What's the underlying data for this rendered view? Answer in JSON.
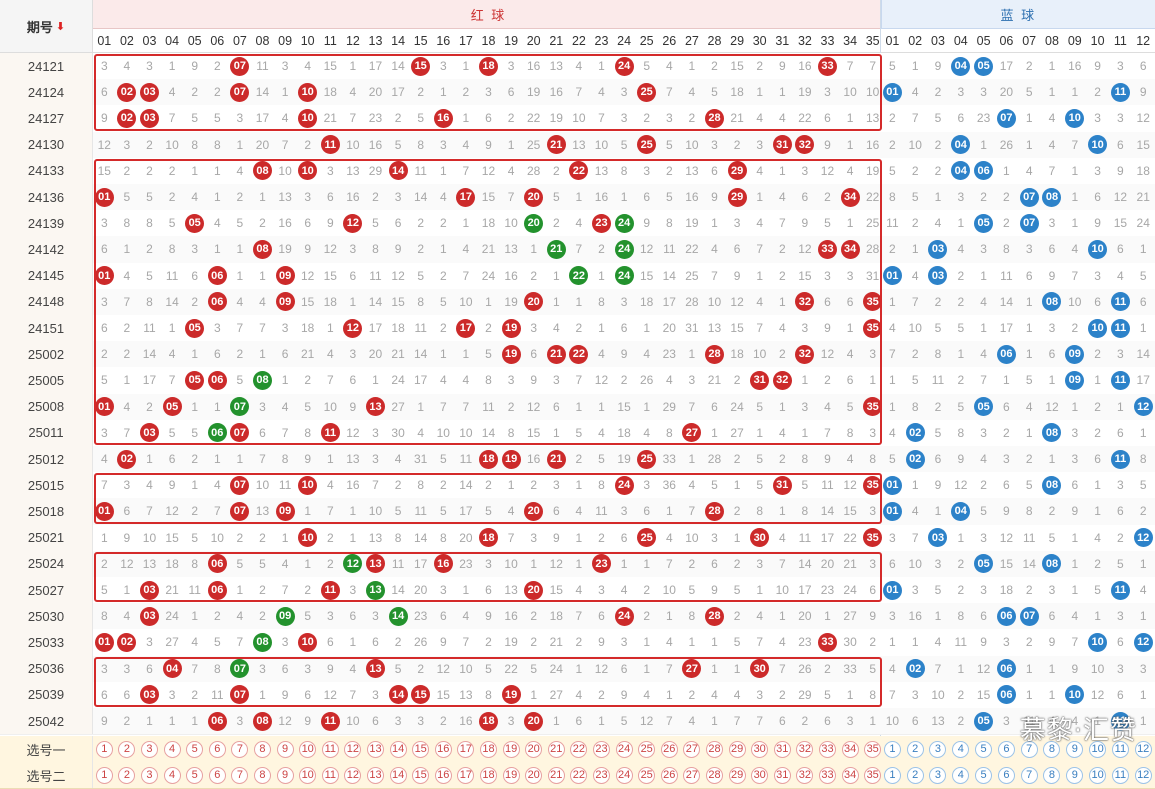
{
  "header": {
    "issue_label": "期号",
    "sort_icon": "sort-down-arrow-icon",
    "red_title": "红 球",
    "blue_title": "蓝 球"
  },
  "red_numbers": [
    "01",
    "02",
    "03",
    "04",
    "05",
    "06",
    "07",
    "08",
    "09",
    "10",
    "11",
    "12",
    "13",
    "14",
    "15",
    "16",
    "17",
    "18",
    "19",
    "20",
    "21",
    "22",
    "23",
    "24",
    "25",
    "26",
    "27",
    "28",
    "29",
    "30",
    "31",
    "32",
    "33",
    "34",
    "35"
  ],
  "blue_numbers": [
    "01",
    "02",
    "03",
    "04",
    "05",
    "06",
    "07",
    "08",
    "09",
    "10",
    "11",
    "12"
  ],
  "draws": [
    {
      "issue": "24121",
      "red": [
        [
          3,
          4,
          3,
          1,
          9,
          2,
          "07",
          11,
          3,
          4,
          15,
          1,
          17,
          14,
          "15",
          3,
          1,
          "18",
          3,
          16,
          13,
          4,
          1,
          "24",
          5,
          4,
          1,
          2,
          15,
          2,
          9,
          16,
          "33",
          7,
          7
        ]
      ],
      "blue": [
        5,
        1,
        9,
        "04",
        "05",
        17,
        2,
        1,
        16,
        9,
        3,
        6
      ]
    },
    {
      "issue": "24124",
      "red": [
        [
          6,
          "02",
          "03",
          4,
          2,
          2,
          "07",
          14,
          1,
          "10",
          18,
          4,
          20,
          17,
          2,
          1,
          2,
          3,
          6,
          19,
          16,
          7,
          4,
          3,
          "25",
          7,
          4,
          5,
          18,
          1,
          1,
          19,
          3,
          10,
          10
        ]
      ],
      "blue": [
        "01",
        4,
        2,
        3,
        3,
        20,
        5,
        1,
        1,
        2,
        "11",
        9
      ]
    },
    {
      "issue": "24127",
      "red": [
        [
          9,
          "02",
          "03",
          7,
          5,
          5,
          3,
          17,
          4,
          "10",
          21,
          7,
          23,
          2,
          5,
          "16",
          1,
          6,
          2,
          22,
          19,
          10,
          7,
          3,
          2,
          3,
          2,
          "28",
          21,
          4,
          4,
          22,
          6,
          1,
          13
        ]
      ],
      "blue": [
        2,
        7,
        5,
        6,
        23,
        "07",
        1,
        4,
        "10",
        3,
        3,
        12
      ]
    },
    {
      "issue": "24130",
      "red": [
        [
          12,
          3,
          2,
          10,
          8,
          8,
          1,
          20,
          7,
          2,
          "11",
          10,
          16,
          5,
          8,
          3,
          4,
          9,
          1,
          25,
          "21",
          13,
          10,
          5,
          "25",
          5,
          10,
          3,
          2,
          3,
          "31",
          "32",
          9,
          1,
          16
        ]
      ],
      "blue": [
        2,
        10,
        2,
        "04",
        1,
        26,
        1,
        4,
        7,
        "10",
        6,
        15
      ]
    },
    {
      "issue": "24133",
      "red": [
        [
          15,
          2,
          2,
          2,
          1,
          1,
          4,
          "08",
          10,
          "10",
          3,
          13,
          29,
          "14",
          11,
          1,
          7,
          12,
          4,
          28,
          2,
          "22",
          13,
          8,
          3,
          2,
          13,
          6,
          "29",
          4,
          1,
          3,
          12,
          4,
          19
        ]
      ],
      "blue": [
        5,
        2,
        2,
        "04",
        "06",
        1,
        4,
        7,
        1,
        3,
        9,
        18
      ]
    },
    {
      "issue": "24136",
      "red": [
        [
          "01",
          5,
          5,
          2,
          4,
          1,
          2,
          1,
          13,
          3,
          6,
          16,
          2,
          3,
          14,
          4,
          "17",
          15,
          7,
          "20",
          5,
          1,
          16,
          1,
          6,
          5,
          16,
          9,
          "29",
          1,
          4,
          6,
          2,
          "34",
          22
        ]
      ],
      "blue": [
        8,
        5,
        1,
        3,
        2,
        2,
        "07",
        "08",
        1,
        6,
        12,
        21
      ]
    },
    {
      "issue": "24139",
      "red": [
        [
          3,
          8,
          8,
          5,
          "05",
          4,
          5,
          2,
          16,
          6,
          9,
          "12",
          5,
          6,
          2,
          2,
          1,
          18,
          10,
          "20",
          2,
          4,
          "23",
          "24",
          9,
          8,
          19,
          1,
          3,
          4,
          7,
          9,
          5,
          1,
          25
        ]
      ],
      "blue": [
        11,
        2,
        4,
        1,
        "05",
        2,
        "07",
        3,
        1,
        9,
        15,
        24
      ]
    },
    {
      "issue": "24142",
      "red": [
        [
          6,
          1,
          2,
          8,
          3,
          1,
          1,
          "08",
          19,
          9,
          12,
          3,
          8,
          9,
          2,
          1,
          4,
          21,
          13,
          1,
          "21",
          7,
          2,
          "24",
          12,
          11,
          22,
          4,
          6,
          7,
          2,
          12,
          "33",
          "34",
          28
        ]
      ],
      "blue": [
        2,
        1,
        "03",
        4,
        3,
        8,
        3,
        6,
        4,
        "10",
        6,
        1
      ]
    },
    {
      "issue": "24145",
      "red": [
        [
          "01",
          4,
          5,
          11,
          6,
          "06",
          1,
          1,
          "09",
          12,
          15,
          6,
          11,
          12,
          5,
          2,
          7,
          24,
          16,
          2,
          1,
          "22",
          1,
          "24",
          15,
          14,
          25,
          7,
          9,
          1,
          2,
          15,
          3,
          3,
          31
        ]
      ],
      "blue": [
        "01",
        4,
        "03",
        2,
        1,
        11,
        6,
        9,
        7,
        3,
        4,
        5
      ]
    },
    {
      "issue": "24148",
      "red": [
        [
          3,
          7,
          8,
          14,
          2,
          "06",
          4,
          4,
          "09",
          15,
          18,
          1,
          14,
          15,
          8,
          5,
          10,
          1,
          19,
          "20",
          1,
          1,
          8,
          3,
          18,
          17,
          28,
          10,
          12,
          4,
          1,
          "32",
          6,
          6,
          "35"
        ]
      ],
      "blue": [
        1,
        7,
        2,
        2,
        4,
        14,
        1,
        "08",
        10,
        6,
        "11",
        6
      ]
    },
    {
      "issue": "24151",
      "red": [
        [
          6,
          2,
          11,
          1,
          "05",
          3,
          7,
          7,
          3,
          18,
          1,
          "12",
          17,
          18,
          11,
          2,
          "17",
          2,
          "19",
          3,
          4,
          2,
          1,
          6,
          1,
          20,
          31,
          13,
          15,
          7,
          4,
          3,
          9,
          1,
          "35"
        ]
      ],
      "blue": [
        4,
        10,
        5,
        5,
        1,
        17,
        1,
        3,
        2,
        "10",
        "11",
        1
      ]
    },
    {
      "issue": "25002",
      "red": [
        [
          2,
          2,
          14,
          4,
          1,
          6,
          2,
          1,
          6,
          21,
          4,
          3,
          20,
          21,
          14,
          1,
          1,
          5,
          "19",
          6,
          "21",
          "22",
          4,
          9,
          4,
          23,
          1,
          "28",
          18,
          10,
          2,
          "32",
          12,
          4,
          3
        ]
      ],
      "blue": [
        7,
        2,
        8,
        1,
        4,
        "06",
        1,
        6,
        "09",
        2,
        3,
        14
      ]
    },
    {
      "issue": "25005",
      "red": [
        [
          5,
          1,
          17,
          7,
          "05",
          "06",
          5,
          "08",
          1,
          2,
          7,
          6,
          1,
          24,
          17,
          4,
          4,
          8,
          3,
          9,
          3,
          7,
          12,
          2,
          26,
          4,
          3,
          21,
          2,
          "31",
          "32",
          1,
          2,
          6,
          1
        ]
      ],
      "blue": [
        1,
        5,
        11,
        2,
        7,
        1,
        5,
        1,
        "09",
        1,
        "11",
        17
      ]
    },
    {
      "issue": "25008",
      "red": [
        [
          "01",
          4,
          2,
          "05",
          1,
          1,
          "07",
          3,
          4,
          5,
          10,
          9,
          "13",
          27,
          1,
          7,
          7,
          11,
          2,
          12,
          6,
          1,
          1,
          15,
          1,
          29,
          7,
          6,
          24,
          5,
          1,
          3,
          4,
          5,
          "35"
        ]
      ],
      "blue": [
        1,
        8,
        2,
        5,
        "05",
        6,
        4,
        12,
        1,
        2,
        1,
        "12"
      ]
    },
    {
      "issue": "25011",
      "red": [
        [
          3,
          7,
          "03",
          5,
          5,
          "06",
          "07",
          6,
          7,
          8,
          "11",
          12,
          3,
          30,
          4,
          10,
          10,
          14,
          8,
          15,
          1,
          5,
          4,
          18,
          4,
          8,
          "27",
          1,
          27,
          1,
          4,
          1,
          7,
          8,
          3
        ]
      ],
      "blue": [
        4,
        "02",
        5,
        8,
        3,
        2,
        1,
        "08",
        3,
        2,
        6,
        1
      ]
    },
    {
      "issue": "25012",
      "red": [
        [
          4,
          "02",
          1,
          6,
          2,
          1,
          1,
          7,
          8,
          9,
          1,
          13,
          3,
          4,
          31,
          5,
          11,
          "18",
          "19",
          16,
          "21",
          2,
          5,
          19,
          "25",
          33,
          1,
          28,
          2,
          5,
          2,
          8,
          9,
          4,
          8
        ]
      ],
      "blue": [
        5,
        "02",
        6,
        9,
        4,
        3,
        2,
        1,
        3,
        6,
        "11",
        8
      ]
    },
    {
      "issue": "25015",
      "red": [
        [
          7,
          3,
          4,
          9,
          1,
          4,
          "07",
          10,
          11,
          "10",
          4,
          16,
          7,
          2,
          8,
          2,
          14,
          2,
          1,
          2,
          3,
          1,
          8,
          "24",
          3,
          36,
          4,
          5,
          1,
          5,
          "31",
          5,
          11,
          12,
          "35"
        ]
      ],
      "blue": [
        "01",
        1,
        9,
        12,
        2,
        6,
        5,
        "08",
        6,
        1,
        3,
        5
      ]
    },
    {
      "issue": "25018",
      "red": [
        [
          "01",
          6,
          7,
          12,
          2,
          7,
          "07",
          13,
          "09",
          1,
          7,
          1,
          10,
          5,
          11,
          5,
          17,
          5,
          4,
          "20",
          6,
          4,
          11,
          3,
          6,
          1,
          7,
          "28",
          2,
          8,
          1,
          8,
          14,
          15,
          3
        ]
      ],
      "blue": [
        "01",
        4,
        1,
        "04",
        5,
        9,
        8,
        2,
        9,
        1,
        6,
        2
      ]
    },
    {
      "issue": "25021",
      "red": [
        [
          1,
          9,
          10,
          15,
          5,
          10,
          2,
          2,
          1,
          "10",
          2,
          1,
          13,
          8,
          14,
          8,
          20,
          "18",
          7,
          3,
          9,
          1,
          2,
          6,
          "25",
          4,
          10,
          3,
          1,
          "30",
          4,
          11,
          17,
          22,
          "35"
        ]
      ],
      "blue": [
        3,
        7,
        "03",
        1,
        3,
        12,
        11,
        5,
        1,
        4,
        2,
        "12"
      ]
    },
    {
      "issue": "25024",
      "red": [
        [
          2,
          12,
          13,
          18,
          8,
          "06",
          5,
          5,
          4,
          1,
          2,
          "12",
          "13",
          11,
          17,
          "16",
          23,
          3,
          10,
          1,
          12,
          1,
          "23",
          1,
          1,
          7,
          2,
          6,
          2,
          3,
          7,
          14,
          20,
          21,
          3
        ]
      ],
      "blue": [
        6,
        10,
        3,
        2,
        "05",
        15,
        14,
        "08",
        1,
        2,
        5,
        1
      ]
    },
    {
      "issue": "25027",
      "red": [
        [
          5,
          1,
          "03",
          21,
          11,
          "06",
          1,
          2,
          7,
          2,
          "11",
          3,
          "13",
          14,
          20,
          3,
          1,
          6,
          13,
          "20",
          15,
          4,
          3,
          4,
          2,
          10,
          5,
          9,
          5,
          1,
          10,
          17,
          23,
          24,
          6
        ]
      ],
      "blue": [
        "01",
        3,
        5,
        2,
        3,
        18,
        2,
        3,
        1,
        5,
        "11",
        4
      ]
    },
    {
      "issue": "25030",
      "red": [
        [
          8,
          4,
          "03",
          24,
          1,
          2,
          4,
          2,
          "09",
          5,
          3,
          6,
          3,
          "14",
          23,
          6,
          4,
          9,
          16,
          2,
          18,
          7,
          6,
          "24",
          2,
          1,
          8,
          "28",
          2,
          4,
          1,
          20,
          1,
          27,
          9
        ]
      ],
      "blue": [
        3,
        16,
        1,
        8,
        6,
        "06",
        "07",
        6,
        4,
        1,
        3,
        1
      ]
    },
    {
      "issue": "25033",
      "red": [
        [
          "01",
          "02",
          3,
          27,
          4,
          5,
          7,
          "08",
          3,
          "10",
          6,
          1,
          6,
          2,
          26,
          9,
          7,
          2,
          19,
          2,
          21,
          2,
          9,
          3,
          1,
          4,
          1,
          1,
          5,
          7,
          4,
          23,
          "33",
          30,
          2
        ]
      ],
      "blue": [
        1,
        1,
        4,
        11,
        9,
        3,
        2,
        9,
        7,
        "10",
        6,
        "12"
      ]
    },
    {
      "issue": "25036",
      "red": [
        [
          3,
          3,
          6,
          "04",
          7,
          8,
          "07",
          3,
          6,
          3,
          9,
          4,
          "13",
          5,
          2,
          12,
          10,
          5,
          22,
          5,
          24,
          1,
          12,
          6,
          1,
          7,
          "27",
          1,
          1,
          "30",
          7,
          26,
          2,
          33,
          5
        ]
      ],
      "blue": [
        4,
        "02",
        7,
        1,
        12,
        "06",
        1,
        1,
        9,
        10,
        3,
        3
      ]
    },
    {
      "issue": "25039",
      "red": [
        [
          6,
          6,
          "03",
          3,
          2,
          11,
          "07",
          1,
          9,
          6,
          12,
          7,
          3,
          "14",
          "15",
          15,
          13,
          8,
          "19",
          1,
          27,
          4,
          2,
          9,
          4,
          1,
          2,
          4,
          4,
          3,
          2,
          29,
          5,
          1,
          8
        ]
      ],
      "blue": [
        7,
        3,
        10,
        2,
        15,
        "06",
        1,
        1,
        "10",
        12,
        6,
        1
      ]
    },
    {
      "issue": "25042",
      "red": [
        [
          9,
          2,
          1,
          1,
          1,
          "06",
          3,
          "08",
          12,
          9,
          "11",
          10,
          6,
          3,
          3,
          2,
          16,
          "18",
          3,
          "20",
          1,
          6,
          1,
          5,
          12,
          7,
          4,
          1,
          7,
          7,
          6,
          2,
          6,
          3,
          1
        ]
      ],
      "blue": [
        10,
        6,
        13,
        2,
        "05",
        3,
        11,
        4,
        4,
        1,
        "11",
        1
      ]
    }
  ],
  "green_marks": [
    "24139-20",
    "24139-24",
    "24142-21",
    "24142-24",
    "24145-22",
    "24145-24",
    "25005-08",
    "25008-07",
    "25011-06",
    "25024-12",
    "25027-13",
    "25030-09",
    "25030-14",
    "25033-08",
    "25036-07"
  ],
  "pick_rows": [
    {
      "label": "选号一"
    },
    {
      "label": "选号二"
    }
  ],
  "colors": {
    "red_ball": "#cc2a2a",
    "green_ball": "#23922d",
    "blue_ball": "#2c82c9",
    "frame": "#d42a2a",
    "red_header_bg": "#fbeaea",
    "blue_header_bg": "#e8f0fa"
  },
  "watermark": "慕黎·汇赞"
}
